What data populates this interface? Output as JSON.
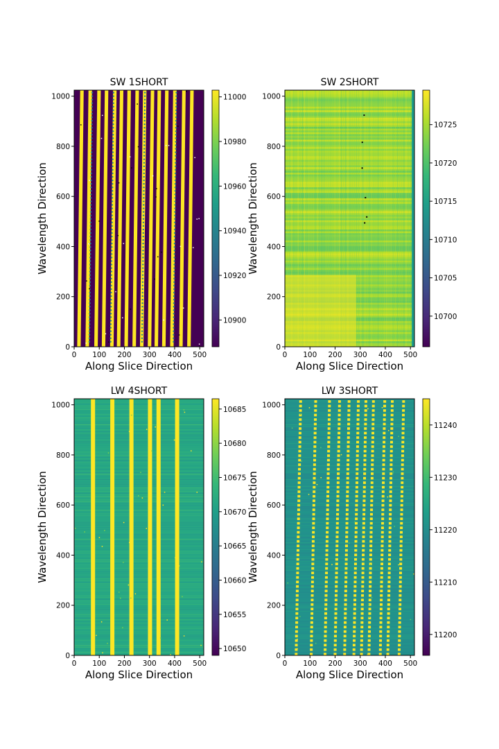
{
  "chart_data": [
    {
      "type": "heatmap",
      "title": "SW 1SHORT",
      "xlabel": "Along Slice Direction",
      "ylabel": "Wavelength Direction",
      "xlim": [
        0,
        516
      ],
      "ylim": [
        0,
        1024
      ],
      "xticks": [
        "0",
        "100",
        "200",
        "300",
        "400",
        "500"
      ],
      "yticks": [
        "0",
        "200",
        "400",
        "600",
        "800",
        "1000"
      ],
      "colorbar": {
        "ticks": [
          "10900",
          "10920",
          "10940",
          "10960",
          "10980",
          "11000"
        ],
        "min": 10888,
        "max": 11003
      },
      "pattern": "bands",
      "stripes_x_at_bottom": [
        12,
        45,
        80,
        110,
        143,
        170,
        200,
        232,
        262,
        293,
        320,
        350,
        382,
        418,
        450
      ],
      "stripe_width": 14,
      "stripe_tilt_top_minus_bottom": 12
    },
    {
      "type": "heatmap",
      "title": "SW 2SHORT",
      "xlabel": "Along Slice Direction",
      "ylabel": "Wavelength Direction",
      "xlim": [
        0,
        516
      ],
      "ylim": [
        0,
        1024
      ],
      "xticks": [
        "0",
        "100",
        "200",
        "300",
        "400",
        "500"
      ],
      "yticks": [
        "0",
        "200",
        "400",
        "600",
        "800",
        "1000"
      ],
      "colorbar": {
        "ticks": [
          "10700",
          "10705",
          "10710",
          "10715",
          "10720",
          "10725"
        ],
        "min": 10696,
        "max": 10729.5
      },
      "pattern": "noise"
    },
    {
      "type": "heatmap",
      "title": "LW 4SHORT",
      "xlabel": "Along Slice Direction",
      "ylabel": "Wavelength Direction",
      "xlim": [
        0,
        516
      ],
      "ylim": [
        0,
        1024
      ],
      "xticks": [
        "0",
        "100",
        "200",
        "300",
        "400",
        "500"
      ],
      "yticks": [
        "0",
        "200",
        "400",
        "600",
        "800",
        "1000"
      ],
      "colorbar": {
        "ticks": [
          "10650",
          "10655",
          "10660",
          "10665",
          "10670",
          "10675",
          "10680",
          "10685"
        ],
        "min": 10649,
        "max": 10686.5
      },
      "pattern": "lines",
      "lines_x": [
        75,
        152,
        228,
        302,
        336,
        410
      ],
      "line_width": 10
    },
    {
      "type": "heatmap",
      "title": "LW 3SHORT",
      "xlabel": "Along Slice Direction",
      "ylabel": "Wavelength Direction",
      "xlim": [
        0,
        516
      ],
      "ylim": [
        0,
        1024
      ],
      "xticks": [
        "0",
        "100",
        "200",
        "300",
        "400",
        "500"
      ],
      "yticks": [
        "0",
        "200",
        "400",
        "600",
        "800",
        "1000"
      ],
      "colorbar": {
        "ticks": [
          "11200",
          "11210",
          "11220",
          "11230",
          "11240"
        ],
        "min": 11196,
        "max": 11245
      },
      "pattern": "dashed",
      "lines_x_at_bottom": [
        45,
        105,
        160,
        200,
        238,
        275,
        305,
        335,
        380,
        410,
        455
      ],
      "line_tilt_top_minus_bottom": 18,
      "line_width": 8
    }
  ]
}
